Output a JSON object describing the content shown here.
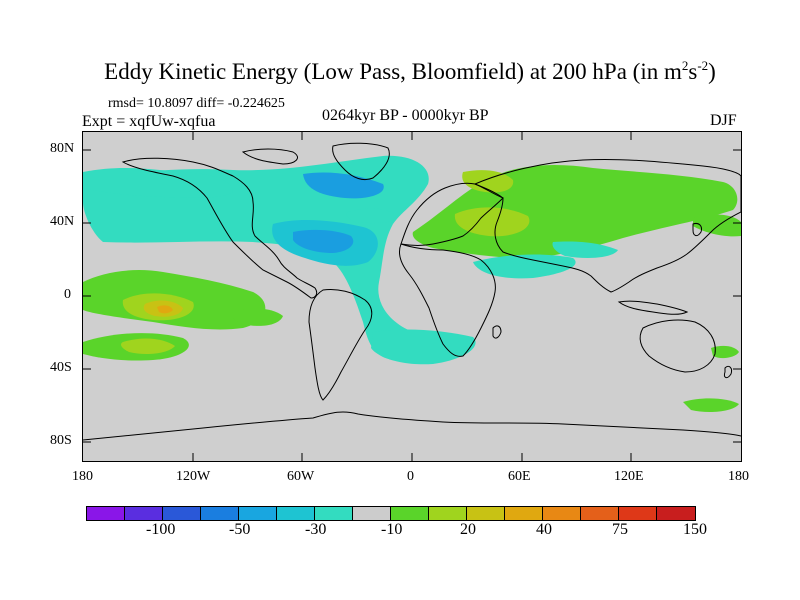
{
  "title": {
    "main": "Eddy Kinetic Energy (Low Pass, Bloomfield) at 200 hPa (in m",
    "sup1": "2",
    "mid": "s",
    "sup2": "-2",
    "close": ")"
  },
  "stats": "rmsd= 10.8097 diff= -0.224625",
  "experiment": "Expt = xqfUw-xqfua",
  "period": "0264kyr BP - 0000kyr BP",
  "season": "DJF",
  "lat_labels": [
    "80N",
    "40N",
    "0",
    "40S",
    "80S"
  ],
  "lon_labels": [
    "180",
    "120W",
    "60W",
    "0",
    "60E",
    "120E",
    "180"
  ],
  "colorbar": {
    "colors": [
      "#8a16e8",
      "#5a2ee0",
      "#2a58d8",
      "#1a7ee0",
      "#19a6e0",
      "#1ec4d2",
      "#33dcc0",
      "#cccccc",
      "#5ad42a",
      "#a0d41e",
      "#c8c214",
      "#e0a810",
      "#e88814",
      "#e4601a",
      "#de3818",
      "#c81e1e"
    ],
    "labels": [
      "-100",
      "-50",
      "-30",
      "-10",
      "20",
      "40",
      "75",
      "150"
    ]
  },
  "map_colors": {
    "land_bg": "#cfcfcf",
    "cyan": "#33dcc0",
    "teal": "#1ec4d2",
    "blue": "#1a9ee0",
    "darkblue": "#1a7ee0",
    "green": "#5ad42a",
    "yellowgreen": "#a0d41e",
    "yellow": "#c8c214",
    "orange": "#e0a810"
  }
}
